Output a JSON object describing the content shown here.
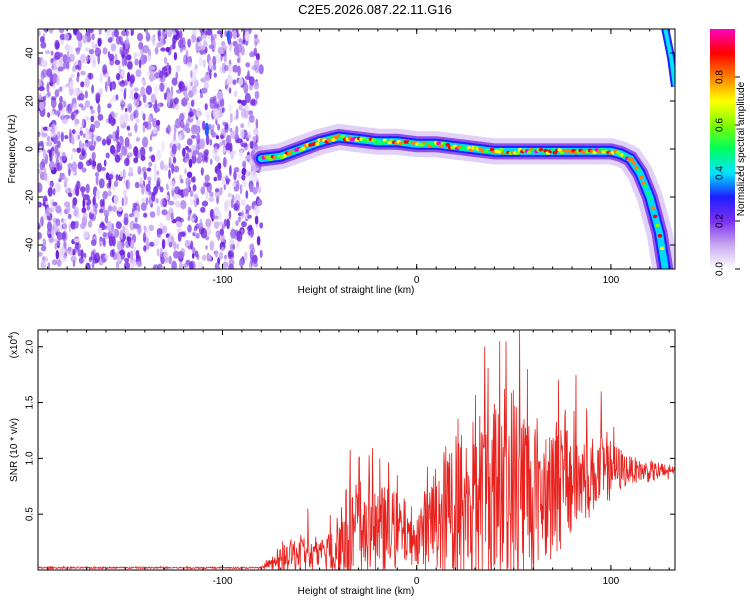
{
  "figure": {
    "title": "C2E5.2026.087.22.11.G16"
  },
  "chart_data": [
    {
      "type": "heatmap",
      "xlabel": "Height of straight line (km)",
      "ylabel": "Frequency (Hz)",
      "xlim": [
        -195,
        133
      ],
      "ylim": [
        -50,
        50
      ],
      "xticks": [
        -100,
        0,
        100
      ],
      "yticks": [
        -40,
        -20,
        0,
        20,
        40
      ],
      "colorbar": {
        "label": "Normalized spectral amplitude",
        "range": [
          0,
          1
        ],
        "ticks": [
          0.0,
          0.2,
          0.4,
          0.6,
          0.8
        ],
        "colors": [
          "#ffffff",
          "#c8a8f0",
          "#7b2ff0",
          "#1e1eff",
          "#00e5ff",
          "#00ff60",
          "#80ff00",
          "#ffff00",
          "#ff8000",
          "#ff0000",
          "#ff00c0"
        ]
      },
      "noise_region": {
        "x_start": -195,
        "x_end": -80
      },
      "ridge": [
        {
          "x": -80,
          "y": -4
        },
        {
          "x": -70,
          "y": -3
        },
        {
          "x": -60,
          "y": 0
        },
        {
          "x": -50,
          "y": 3
        },
        {
          "x": -40,
          "y": 5
        },
        {
          "x": -30,
          "y": 4
        },
        {
          "x": -20,
          "y": 3
        },
        {
          "x": -10,
          "y": 3
        },
        {
          "x": 0,
          "y": 2
        },
        {
          "x": 10,
          "y": 2
        },
        {
          "x": 20,
          "y": 1
        },
        {
          "x": 30,
          "y": 0
        },
        {
          "x": 40,
          "y": -1
        },
        {
          "x": 50,
          "y": -1
        },
        {
          "x": 60,
          "y": -1
        },
        {
          "x": 70,
          "y": -1
        },
        {
          "x": 80,
          "y": -1
        },
        {
          "x": 90,
          "y": -1
        },
        {
          "x": 100,
          "y": -1
        },
        {
          "x": 105,
          "y": -2
        },
        {
          "x": 110,
          "y": -4
        },
        {
          "x": 115,
          "y": -10
        },
        {
          "x": 120,
          "y": -20
        },
        {
          "x": 125,
          "y": -35
        },
        {
          "x": 128,
          "y": -50
        }
      ],
      "upper_branch": [
        {
          "x": 128,
          "y": 50
        },
        {
          "x": 131,
          "y": 38
        },
        {
          "x": 133,
          "y": 26
        }
      ]
    },
    {
      "type": "line",
      "xlabel": "Height of straight line (km)",
      "ylabel": "SNR (10 * v/v)",
      "y_multiplier": "(x10",
      "y_multiplier_exp": "4",
      "y_multiplier_close": ")",
      "xlim": [
        -195,
        133
      ],
      "ylim": [
        0,
        2.15
      ],
      "xticks": [
        -100,
        0,
        100
      ],
      "yticks": [
        0.5,
        1.0,
        1.5,
        2.0
      ],
      "ytick_labels": [
        "0.5",
        "1.0",
        "1.5",
        "2.0"
      ],
      "line_color": "#e8211d",
      "envelope": [
        {
          "x": -195,
          "base": 0.02,
          "amp": 0.01
        },
        {
          "x": -80,
          "base": 0.02,
          "amp": 0.01
        },
        {
          "x": -75,
          "base": 0.05,
          "amp": 0.08
        },
        {
          "x": -60,
          "base": 0.15,
          "amp": 0.25
        },
        {
          "x": -50,
          "base": 0.12,
          "amp": 0.15
        },
        {
          "x": -40,
          "base": 0.25,
          "amp": 0.55
        },
        {
          "x": -30,
          "base": 0.35,
          "amp": 0.65
        },
        {
          "x": -20,
          "base": 0.35,
          "amp": 0.55
        },
        {
          "x": -10,
          "base": 0.35,
          "amp": 0.45
        },
        {
          "x": 0,
          "base": 0.3,
          "amp": 0.3
        },
        {
          "x": 10,
          "base": 0.45,
          "amp": 0.7
        },
        {
          "x": 20,
          "base": 0.55,
          "amp": 0.9
        },
        {
          "x": 30,
          "base": 0.6,
          "amp": 1.0
        },
        {
          "x": 40,
          "base": 0.65,
          "amp": 1.2
        },
        {
          "x": 50,
          "base": 0.7,
          "amp": 1.3
        },
        {
          "x": 60,
          "base": 0.7,
          "amp": 0.9
        },
        {
          "x": 70,
          "base": 0.75,
          "amp": 0.8
        },
        {
          "x": 80,
          "base": 0.8,
          "amp": 0.7
        },
        {
          "x": 90,
          "base": 0.85,
          "amp": 0.45
        },
        {
          "x": 100,
          "base": 0.9,
          "amp": 0.35
        },
        {
          "x": 110,
          "base": 0.9,
          "amp": 0.15
        },
        {
          "x": 120,
          "base": 0.88,
          "amp": 0.12
        },
        {
          "x": 133,
          "base": 0.88,
          "amp": 0.1
        }
      ],
      "peaks": [
        {
          "x": -56,
          "y": 0.55
        },
        {
          "x": -19,
          "y": 1.0
        },
        {
          "x": 18,
          "y": 1.05
        },
        {
          "x": 35,
          "y": 2.0
        },
        {
          "x": 46,
          "y": 2.05
        },
        {
          "x": 53,
          "y": 2.15
        },
        {
          "x": 57,
          "y": 1.8
        },
        {
          "x": 73,
          "y": 1.7
        },
        {
          "x": 82,
          "y": 1.75
        },
        {
          "x": 95,
          "y": 1.6
        }
      ]
    }
  ]
}
